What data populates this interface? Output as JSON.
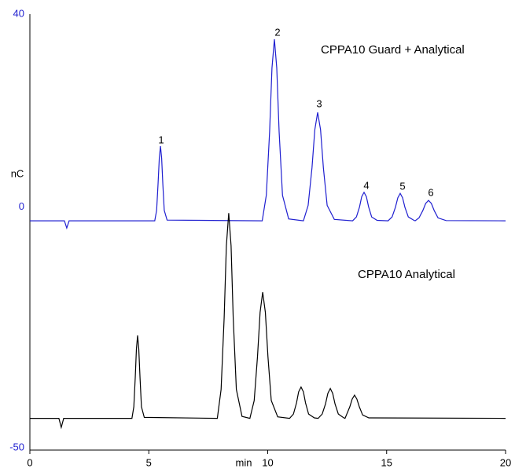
{
  "chart_data": {
    "type": "line",
    "x_label": "min",
    "y_label": "nC",
    "xlim": [
      0,
      20
    ],
    "xticks": [
      0,
      5,
      10,
      15,
      20
    ],
    "ylim": [
      -50,
      40
    ],
    "yticks": [
      -50,
      0,
      40
    ],
    "tick_color": "#1f1fd0",
    "annotations": [
      "1",
      "2",
      "3",
      "4",
      "5",
      "6"
    ],
    "series": [
      {
        "name": "CPPA10 Guard + Analytical",
        "color": "#1f1fd0",
        "x": [
          0,
          1.45,
          1.55,
          1.65,
          5.25,
          5.33,
          5.39,
          5.44,
          5.49,
          5.54,
          5.59,
          5.65,
          5.77,
          9.77,
          9.94,
          10.08,
          10.18,
          10.28,
          10.38,
          10.48,
          10.62,
          10.88,
          11.5,
          11.7,
          11.86,
          11.98,
          12.1,
          12.22,
          12.34,
          12.5,
          12.8,
          13.57,
          13.73,
          13.86,
          13.95,
          14.05,
          14.15,
          14.24,
          14.37,
          14.6,
          15.06,
          15.23,
          15.37,
          15.47,
          15.57,
          15.67,
          15.77,
          15.91,
          16.15,
          16.2,
          16.36,
          16.52,
          16.64,
          16.76,
          16.88,
          17.0,
          17.16,
          17.5,
          20
        ],
        "values": [
          -2.9,
          -2.9,
          -4.4,
          -2.9,
          -2.9,
          -0.73,
          4.7,
          10.1,
          12.6,
          10.1,
          4.7,
          -0.73,
          -2.75,
          -2.9,
          2.4,
          15.6,
          28.8,
          34.8,
          28.8,
          15.6,
          2.4,
          -2.5,
          -2.9,
          0.3,
          8.1,
          16.0,
          19.6,
          16.0,
          8.1,
          0.3,
          -2.6,
          -2.9,
          -2.1,
          0.0,
          2.1,
          3.0,
          2.1,
          0.0,
          -2.1,
          -2.8,
          -2.9,
          -2.1,
          -0.1,
          1.9,
          2.8,
          1.9,
          -0.1,
          -2.1,
          -2.8,
          -2.9,
          -2.3,
          -0.8,
          0.7,
          1.35,
          0.7,
          -0.8,
          -2.3,
          -2.85,
          -2.9
        ]
      },
      {
        "name": "CPPA10 Analytical",
        "color": "#000000",
        "x": [
          0,
          1.22,
          1.32,
          1.42,
          4.29,
          4.37,
          4.43,
          4.48,
          4.53,
          4.58,
          4.63,
          4.69,
          4.81,
          7.88,
          8.04,
          8.17,
          8.26,
          8.36,
          8.46,
          8.55,
          8.68,
          8.92,
          9.25,
          9.43,
          9.57,
          9.68,
          9.79,
          9.9,
          10.01,
          10.15,
          10.42,
          10.92,
          11.08,
          11.21,
          11.3,
          11.4,
          11.5,
          11.59,
          11.72,
          11.96,
          12.12,
          12.29,
          12.43,
          12.53,
          12.63,
          12.73,
          12.83,
          12.97,
          13.2,
          13.25,
          13.31,
          13.45,
          13.55,
          13.65,
          13.75,
          13.85,
          13.99,
          14.25,
          20
        ],
        "values": [
          -43.9,
          -43.9,
          -45.8,
          -43.9,
          -43.9,
          -41.5,
          -35.5,
          -29.5,
          -26.7,
          -29.5,
          -35.5,
          -41.5,
          -43.7,
          -43.9,
          -37.9,
          -23.0,
          -8.1,
          -1.3,
          -8.1,
          -23.0,
          -37.9,
          -43.5,
          -43.9,
          -40.2,
          -31.1,
          -21.9,
          -17.7,
          -21.9,
          -31.1,
          -40.2,
          -43.6,
          -43.9,
          -43.0,
          -40.7,
          -38.4,
          -37.4,
          -38.4,
          -40.7,
          -43.0,
          -43.8,
          -43.9,
          -43.0,
          -40.9,
          -38.7,
          -37.7,
          -38.7,
          -40.9,
          -43.0,
          -43.8,
          -43.9,
          -43.2,
          -41.5,
          -39.9,
          -39.1,
          -39.9,
          -41.5,
          -43.2,
          -43.8,
          -43.9
        ]
      }
    ]
  }
}
